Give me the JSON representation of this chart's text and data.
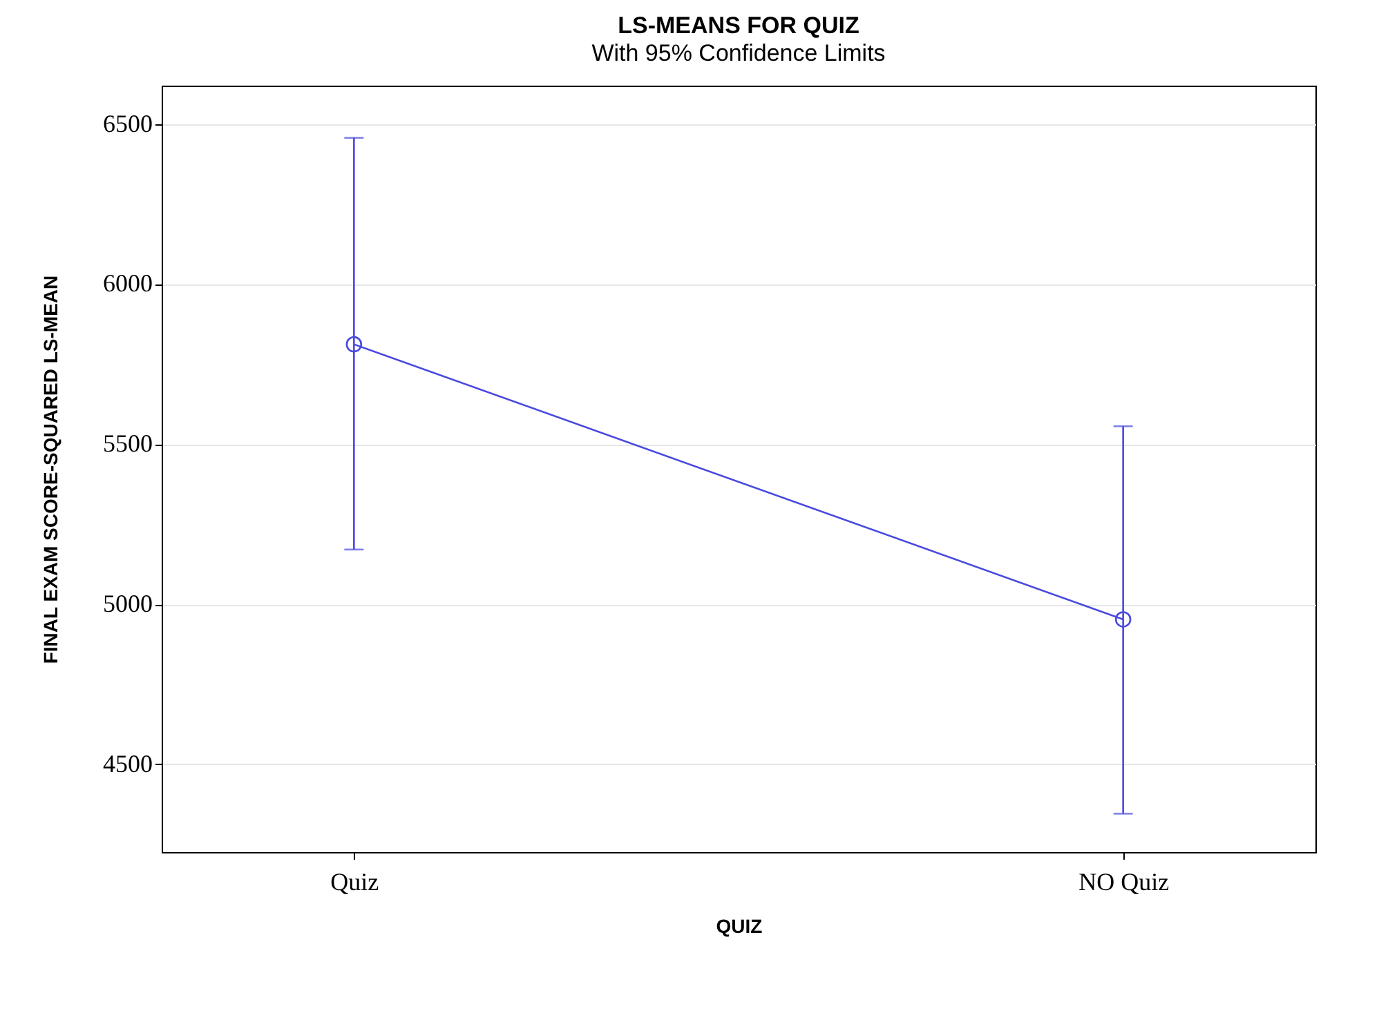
{
  "chart_data": {
    "type": "line",
    "title": "LS-MEANS FOR QUIZ",
    "subtitle": "With 95% Confidence Limits",
    "xlabel": "QUIZ",
    "ylabel": "FINAL EXAM SCORE-SQUARED LS-MEAN",
    "categories": [
      "Quiz",
      "NO Quiz"
    ],
    "series": [
      {
        "color": "#4a4ae0",
        "values": [
          5812,
          4953
        ],
        "errors": [
          [
            5171,
            6457
          ],
          [
            4346,
            5556
          ]
        ]
      }
    ],
    "ylim": [
      4226,
      6620
    ],
    "yticks": [
      4500,
      5000,
      5500,
      6000,
      6500
    ],
    "grid": "y",
    "marker": "circle",
    "line_style": "solid"
  }
}
